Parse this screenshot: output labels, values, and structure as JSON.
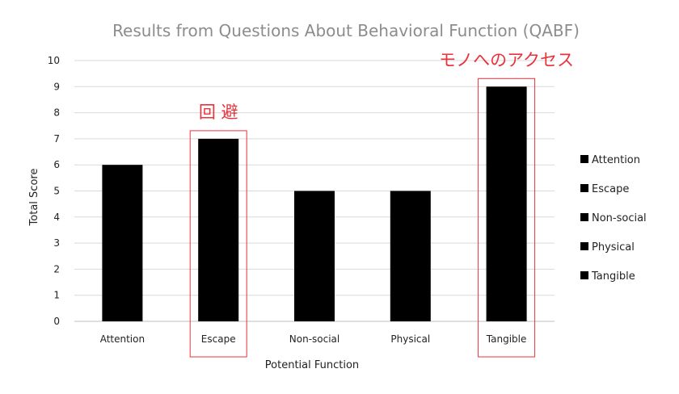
{
  "chart_data": {
    "type": "bar",
    "title": "Results from Questions About Behavioral Function (QABF)",
    "xlabel": "Potential Function",
    "ylabel": "Total Score",
    "ylim": [
      0,
      10
    ],
    "yticks": [
      "0",
      "1",
      "2",
      "3",
      "4",
      "5",
      "6",
      "7",
      "8",
      "9",
      "10"
    ],
    "categories": [
      "Attention",
      "Escape",
      "Non-social",
      "Physical",
      "Tangible"
    ],
    "values": [
      6,
      7,
      5,
      5,
      9
    ],
    "bar_color": "#000000",
    "grid": true,
    "legend_position": "right",
    "legend": [
      "Attention",
      "Escape",
      "Non-social",
      "Physical",
      "Tangible"
    ],
    "annotations": [
      {
        "category": "Escape",
        "text": "回 避"
      },
      {
        "category": "Tangible",
        "text": "モノへのアクセス"
      }
    ],
    "annotation_color": "#e8323c"
  }
}
